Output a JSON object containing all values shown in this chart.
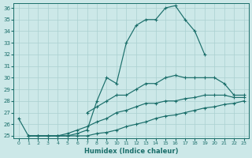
{
  "xlabel": "Humidex (Indice chaleur)",
  "background_color": "#cce8e8",
  "line_color": "#1a6e6a",
  "grid_color": "#aad0d0",
  "xlim": [
    -0.5,
    23.5
  ],
  "ylim": [
    24.8,
    36.4
  ],
  "yticks": [
    25,
    26,
    27,
    28,
    29,
    30,
    31,
    32,
    33,
    34,
    35,
    36
  ],
  "xticks": [
    0,
    1,
    2,
    3,
    4,
    5,
    6,
    7,
    8,
    9,
    10,
    11,
    12,
    13,
    14,
    15,
    16,
    17,
    18,
    19,
    20,
    21,
    22,
    23
  ],
  "line1_x": [
    0,
    1,
    2,
    3,
    4,
    5,
    6,
    7,
    8,
    9,
    10,
    11,
    12,
    13,
    14,
    15,
    16,
    17,
    18,
    19
  ],
  "line1_y": [
    26.5,
    25.0,
    25.0,
    25.0,
    25.0,
    25.0,
    25.2,
    25.5,
    28.0,
    30.0,
    29.5,
    33.0,
    34.5,
    35.0,
    35.0,
    36.0,
    36.2,
    35.0,
    34.0,
    32.0
  ],
  "line2_x": [
    7,
    8,
    9,
    10,
    11,
    12,
    13,
    14,
    15,
    16,
    17,
    18,
    19,
    20,
    21,
    22,
    23
  ],
  "line2_y": [
    27.0,
    27.5,
    28.0,
    28.5,
    28.5,
    29.0,
    29.5,
    29.5,
    30.0,
    30.2,
    30.0,
    30.0,
    30.0,
    30.0,
    29.5,
    28.5,
    28.5
  ],
  "line3_x": [
    1,
    2,
    3,
    4,
    5,
    6,
    7,
    8,
    9,
    10,
    11,
    12,
    13,
    14,
    15,
    16,
    17,
    18,
    19,
    20,
    21,
    22,
    23
  ],
  "line3_y": [
    25.0,
    25.0,
    25.0,
    25.0,
    25.2,
    25.5,
    25.8,
    26.2,
    26.5,
    27.0,
    27.2,
    27.5,
    27.8,
    27.8,
    28.0,
    28.0,
    28.2,
    28.3,
    28.5,
    28.5,
    28.5,
    28.3,
    28.3
  ],
  "line4_x": [
    1,
    2,
    3,
    4,
    5,
    6,
    7,
    8,
    9,
    10,
    11,
    12,
    13,
    14,
    15,
    16,
    17,
    18,
    19,
    20,
    21,
    22,
    23
  ],
  "line4_y": [
    25.0,
    25.0,
    25.0,
    25.0,
    25.0,
    25.0,
    25.0,
    25.2,
    25.3,
    25.5,
    25.8,
    26.0,
    26.2,
    26.5,
    26.7,
    26.8,
    27.0,
    27.2,
    27.4,
    27.5,
    27.7,
    27.8,
    28.0
  ]
}
